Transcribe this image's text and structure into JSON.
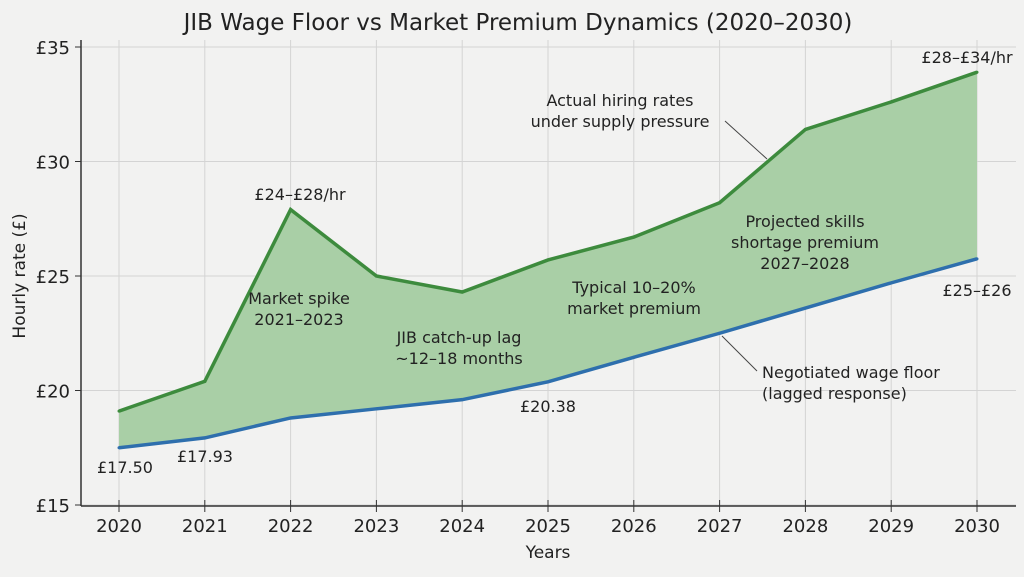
{
  "chart_data": {
    "type": "area",
    "title": "JIB Wage Floor vs Market Premium Dynamics (2020–2030)",
    "xlabel": "Years",
    "ylabel": "Hourly rate (£)",
    "x": [
      2020,
      2021,
      2022,
      2023,
      2024,
      2025,
      2026,
      2027,
      2028,
      2029,
      2030
    ],
    "xtick_labels": [
      "2020",
      "2021",
      "2022",
      "2023",
      "2024",
      "2025",
      "2026",
      "2027",
      "2028",
      "2029",
      "2030"
    ],
    "ylim": [
      15,
      35
    ],
    "ytick_labels": [
      "£15",
      "£20",
      "£25",
      "£30",
      "£35"
    ],
    "yticks": [
      15,
      20,
      25,
      30,
      35
    ],
    "grid": true,
    "series": [
      {
        "key": "market",
        "color": "#3d8b3d",
        "values": [
          19.1,
          20.4,
          27.9,
          25.0,
          24.3,
          25.7,
          26.7,
          28.2,
          31.4,
          32.6,
          33.9
        ]
      },
      {
        "key": "floor",
        "color": "#2e6fad",
        "values": [
          17.5,
          17.93,
          18.8,
          19.2,
          19.6,
          20.38,
          21.45,
          22.5,
          23.6,
          24.7,
          25.75
        ]
      }
    ],
    "fill_color": "#a9cfa6",
    "annotations": {
      "a2020": "£17.50",
      "a2021": "£17.93",
      "a2022": "£24–£28/hr",
      "a2025": "£20.38",
      "a2030top": "£28–£34/hr",
      "a2030bot": "£25–£26",
      "spike": [
        "Market spike",
        "2021–2023"
      ],
      "lag": [
        "JIB catch-up lag",
        "~12–18 months"
      ],
      "premium": [
        "Typical 10–20%",
        "market premium"
      ],
      "shortage": [
        "Projected skills",
        "shortage premium",
        "2027–2028"
      ],
      "hiring": [
        "Actual hiring rates",
        "under supply pressure"
      ],
      "floor": [
        "Negotiated wage floor",
        "(lagged response)"
      ]
    }
  }
}
